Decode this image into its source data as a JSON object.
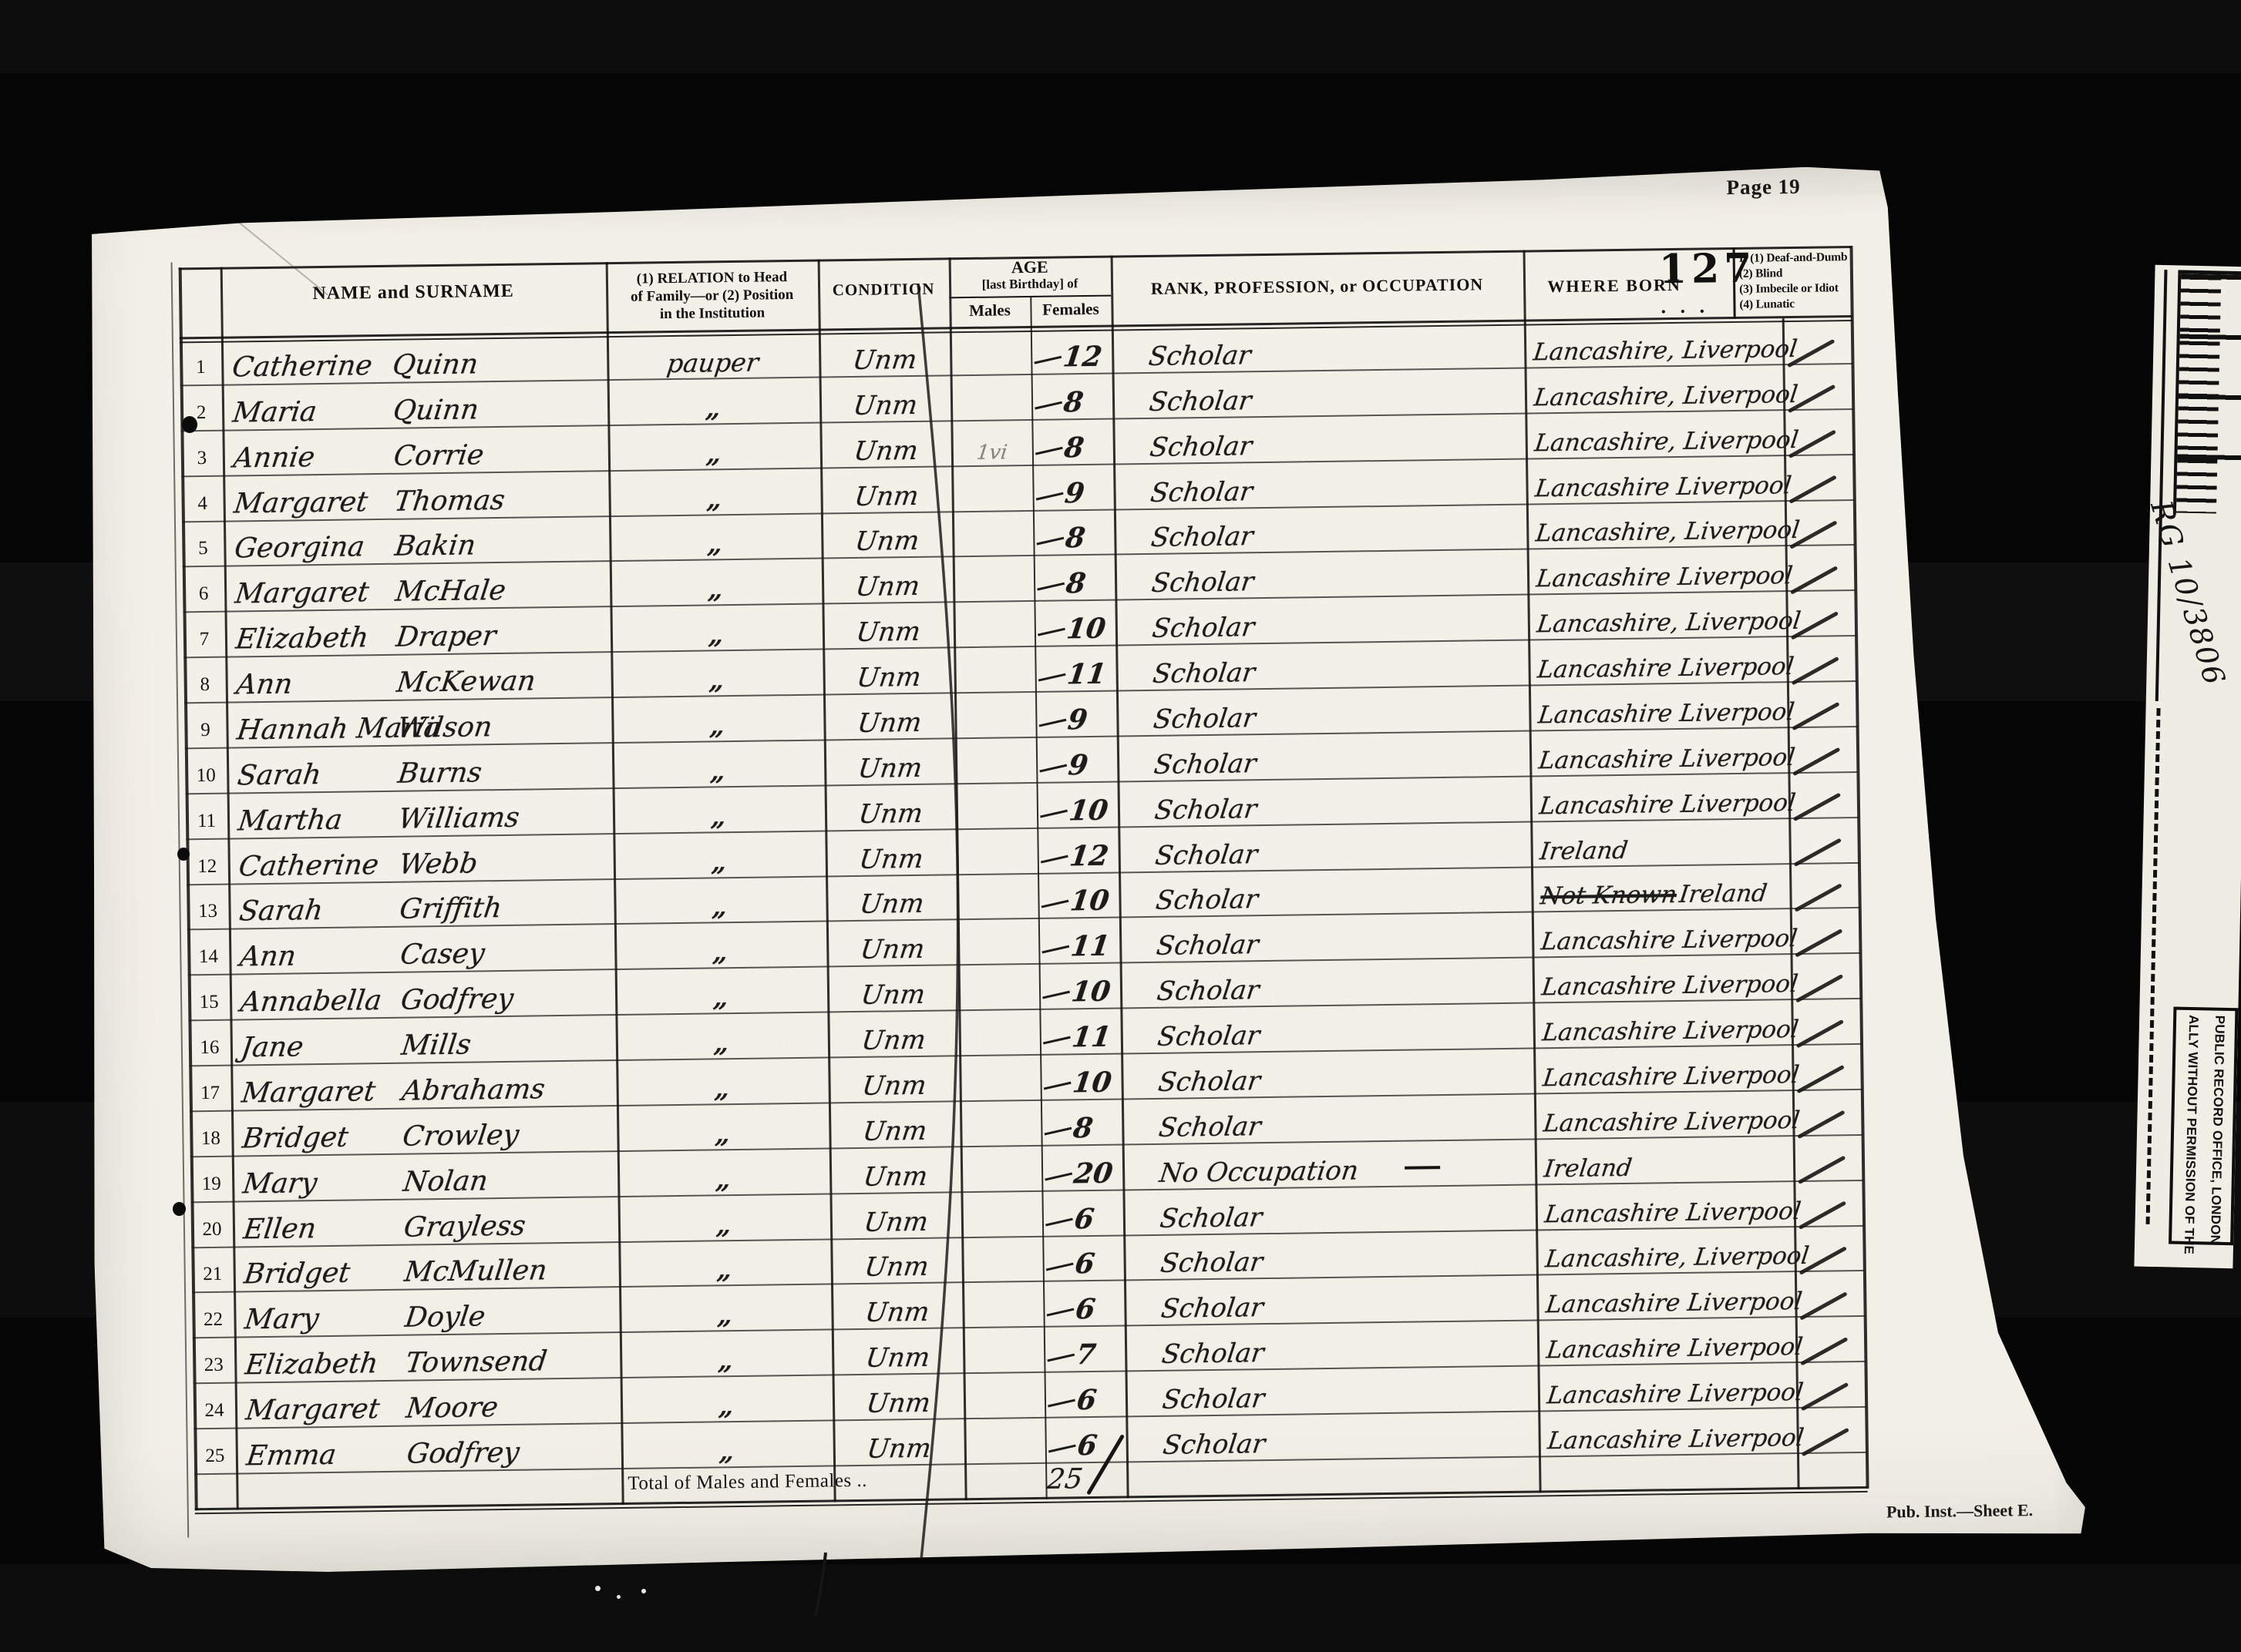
{
  "colors": {
    "paper": "#f2efe7",
    "ink": "#1b1b1b",
    "film_background": "#050505"
  },
  "scan": {
    "page_label": "Page 19",
    "stamp_number": "127",
    "stamp_dots": ". . .",
    "sheet_footer": "Pub. Inst.—Sheet E.",
    "film": {
      "reference": "RG 10/3806",
      "notice_line_left": "ALLY WITHOUT PERMISSION OF THE",
      "notice_line_right": "PUBLIC RECORD OFFICE, LONDON"
    }
  },
  "table": {
    "headers": {
      "name": "NAME and SURNAME",
      "relation_line1": "(1) RELATION to Head",
      "relation_line2": "of Family—or (2) Position",
      "relation_line3": "in the Institution",
      "condition": "CONDITION",
      "age": "AGE",
      "age_sub": "[last Birthday] of",
      "age_males": "Males",
      "age_females": "Females",
      "occupation": "RANK, PROFESSION, or OCCUPATION",
      "where_born": "WHERE BORN",
      "disability_lines": [
        "If (1) Deaf-and-Dumb",
        "(2) Blind",
        "(3) Imbecile or Idiot",
        "(4) Lunatic"
      ]
    },
    "total_label": "Total of Males and Females ..",
    "total_value": "25",
    "rows": [
      {
        "num": "1",
        "given": "Catherine",
        "surname": "Quinn",
        "relation": "pauper",
        "condition": "Unm",
        "age_male": "",
        "age_female": "12",
        "occupation": "Scholar",
        "occupation_dash": false,
        "born_struck": "",
        "born": "Lancashire, Liverpool",
        "tick": true
      },
      {
        "num": "2",
        "given": "Maria",
        "surname": "Quinn",
        "relation": "„",
        "condition": "Unm",
        "age_male": "",
        "age_female": "8",
        "occupation": "Scholar",
        "occupation_dash": false,
        "born_struck": "",
        "born": "Lancashire, Liverpool",
        "tick": true
      },
      {
        "num": "3",
        "given": "Annie",
        "surname": "Corrie",
        "relation": "„",
        "condition": "Unm",
        "age_male": "1vi",
        "age_female": "8",
        "occupation": "Scholar",
        "occupation_dash": false,
        "born_struck": "",
        "born": "Lancashire, Liverpool",
        "tick": true
      },
      {
        "num": "4",
        "given": "Margaret",
        "surname": "Thomas",
        "relation": "„",
        "condition": "Unm",
        "age_male": "",
        "age_female": "9",
        "occupation": "Scholar",
        "occupation_dash": false,
        "born_struck": "",
        "born": "Lancashire Liverpool",
        "tick": true
      },
      {
        "num": "5",
        "given": "Georgina",
        "surname": "Bakin",
        "relation": "„",
        "condition": "Unm",
        "age_male": "",
        "age_female": "8",
        "occupation": "Scholar",
        "occupation_dash": false,
        "born_struck": "",
        "born": "Lancashire, Liverpool",
        "tick": true
      },
      {
        "num": "6",
        "given": "Margaret",
        "surname": "McHale",
        "relation": "„",
        "condition": "Unm",
        "age_male": "",
        "age_female": "8",
        "occupation": "Scholar",
        "occupation_dash": false,
        "born_struck": "",
        "born": "Lancashire Liverpool",
        "tick": true
      },
      {
        "num": "7",
        "given": "Elizabeth",
        "surname": "Draper",
        "relation": "„",
        "condition": "Unm",
        "age_male": "",
        "age_female": "10",
        "occupation": "Scholar",
        "occupation_dash": false,
        "born_struck": "",
        "born": "Lancashire, Liverpool",
        "tick": true
      },
      {
        "num": "8",
        "given": "Ann",
        "surname": "McKewan",
        "relation": "„",
        "condition": "Unm",
        "age_male": "",
        "age_female": "11",
        "occupation": "Scholar",
        "occupation_dash": false,
        "born_struck": "",
        "born": "Lancashire Liverpool",
        "tick": true
      },
      {
        "num": "9",
        "given": "Hannah Maria",
        "surname": "Wilson",
        "relation": "„",
        "condition": "Unm",
        "age_male": "",
        "age_female": "9",
        "occupation": "Scholar",
        "occupation_dash": false,
        "born_struck": "",
        "born": "Lancashire Liverpool",
        "tick": true
      },
      {
        "num": "10",
        "given": "Sarah",
        "surname": "Burns",
        "relation": "„",
        "condition": "Unm",
        "age_male": "",
        "age_female": "9",
        "occupation": "Scholar",
        "occupation_dash": false,
        "born_struck": "",
        "born": "Lancashire Liverpool",
        "tick": true
      },
      {
        "num": "11",
        "given": "Martha",
        "surname": "Williams",
        "relation": "„",
        "condition": "Unm",
        "age_male": "",
        "age_female": "10",
        "occupation": "Scholar",
        "occupation_dash": false,
        "born_struck": "",
        "born": "Lancashire Liverpool",
        "tick": true
      },
      {
        "num": "12",
        "given": "Catherine",
        "surname": "Webb",
        "relation": "„",
        "condition": "Unm",
        "age_male": "",
        "age_female": "12",
        "occupation": "Scholar",
        "occupation_dash": false,
        "born_struck": "",
        "born": "Ireland",
        "tick": true
      },
      {
        "num": "13",
        "given": "Sarah",
        "surname": "Griffith",
        "relation": "„",
        "condition": "Unm",
        "age_male": "",
        "age_female": "10",
        "occupation": "Scholar",
        "occupation_dash": false,
        "born_struck": "Not Known",
        "born": "Ireland",
        "tick": true
      },
      {
        "num": "14",
        "given": "Ann",
        "surname": "Casey",
        "relation": "„",
        "condition": "Unm",
        "age_male": "",
        "age_female": "11",
        "occupation": "Scholar",
        "occupation_dash": false,
        "born_struck": "",
        "born": "Lancashire Liverpool",
        "tick": true
      },
      {
        "num": "15",
        "given": "Annabella",
        "surname": "Godfrey",
        "relation": "„",
        "condition": "Unm",
        "age_male": "",
        "age_female": "10",
        "occupation": "Scholar",
        "occupation_dash": false,
        "born_struck": "",
        "born": "Lancashire Liverpool",
        "tick": true
      },
      {
        "num": "16",
        "given": "Jane",
        "surname": "Mills",
        "relation": "„",
        "condition": "Unm",
        "age_male": "",
        "age_female": "11",
        "occupation": "Scholar",
        "occupation_dash": false,
        "born_struck": "",
        "born": "Lancashire Liverpool",
        "tick": true
      },
      {
        "num": "17",
        "given": "Margaret",
        "surname": "Abrahams",
        "relation": "„",
        "condition": "Unm",
        "age_male": "",
        "age_female": "10",
        "occupation": "Scholar",
        "occupation_dash": false,
        "born_struck": "",
        "born": "Lancashire Liverpool",
        "tick": true
      },
      {
        "num": "18",
        "given": "Bridget",
        "surname": "Crowley",
        "relation": "„",
        "condition": "Unm",
        "age_male": "",
        "age_female": "8",
        "occupation": "Scholar",
        "occupation_dash": false,
        "born_struck": "",
        "born": "Lancashire Liverpool",
        "tick": true
      },
      {
        "num": "19",
        "given": "Mary",
        "surname": "Nolan",
        "relation": "„",
        "condition": "Unm",
        "age_male": "",
        "age_female": "20",
        "occupation": "No Occupation",
        "occupation_dash": true,
        "born_struck": "",
        "born": "Ireland",
        "tick": true
      },
      {
        "num": "20",
        "given": "Ellen",
        "surname": "Grayless",
        "relation": "„",
        "condition": "Unm",
        "age_male": "",
        "age_female": "6",
        "occupation": "Scholar",
        "occupation_dash": false,
        "born_struck": "",
        "born": "Lancashire Liverpool",
        "tick": true
      },
      {
        "num": "21",
        "given": "Bridget",
        "surname": "McMullen",
        "relation": "„",
        "condition": "Unm",
        "age_male": "",
        "age_female": "6",
        "occupation": "Scholar",
        "occupation_dash": false,
        "born_struck": "",
        "born": "Lancashire, Liverpool",
        "tick": true
      },
      {
        "num": "22",
        "given": "Mary",
        "surname": "Doyle",
        "relation": "„",
        "condition": "Unm",
        "age_male": "",
        "age_female": "6",
        "occupation": "Scholar",
        "occupation_dash": false,
        "born_struck": "",
        "born": "Lancashire Liverpool",
        "tick": true
      },
      {
        "num": "23",
        "given": "Elizabeth",
        "surname": "Townsend",
        "relation": "„",
        "condition": "Unm",
        "age_male": "",
        "age_female": "7",
        "occupation": "Scholar",
        "occupation_dash": false,
        "born_struck": "",
        "born": "Lancashire Liverpool",
        "tick": true
      },
      {
        "num": "24",
        "given": "Margaret",
        "surname": "Moore",
        "relation": "„",
        "condition": "Unm",
        "age_male": "",
        "age_female": "6",
        "occupation": "Scholar",
        "occupation_dash": false,
        "born_struck": "",
        "born": "Lancashire Liverpool",
        "tick": true
      },
      {
        "num": "25",
        "given": "Emma",
        "surname": "Godfrey",
        "relation": "„",
        "condition": "Unm",
        "age_male": "",
        "age_female": "6",
        "occupation": "Scholar",
        "occupation_dash": false,
        "born_struck": "",
        "born": "Lancashire Liverpool",
        "tick": true
      }
    ]
  }
}
